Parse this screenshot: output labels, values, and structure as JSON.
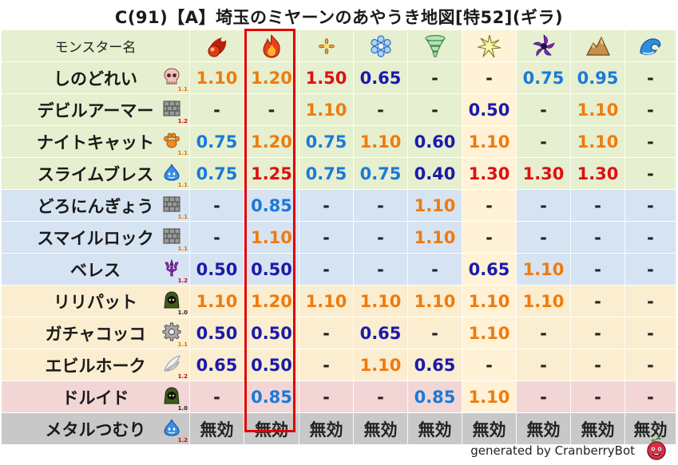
{
  "title": "C(91)【A】埼玉のミヤーンのあやうき地図[特52](ギラ)",
  "header": {
    "name_label": "モンスター名",
    "elements": [
      {
        "icon": "fire-ball-icon"
      },
      {
        "icon": "flame-icon"
      },
      {
        "icon": "wind-leaf-icon"
      },
      {
        "icon": "ice-crystal-icon"
      },
      {
        "icon": "tornado-icon"
      },
      {
        "icon": "lightning-icon"
      },
      {
        "icon": "dark-swirl-icon"
      },
      {
        "icon": "rock-mountain-icon"
      },
      {
        "icon": "water-wave-icon"
      }
    ]
  },
  "colors": {
    "header_bg": "#e6efcf",
    "lightning_bg": "#fff2d6",
    "metal_bg": "#c8c8c8",
    "color_map": {
      "orange": "#f07b0c",
      "red": "#dd1111",
      "navy": "#1a1aaa",
      "blue": "#1a7ad8",
      "dash": "#222222"
    },
    "highlight_border": "#e00000"
  },
  "rows": [
    {
      "name": "しのどれい",
      "icon": "skull-icon",
      "ratio": "1.1",
      "ratio_color": "#e07000",
      "bg": "#e6efcf",
      "cells": [
        {
          "v": "1.10",
          "c": "orange"
        },
        {
          "v": "1.20",
          "c": "orange"
        },
        {
          "v": "1.50",
          "c": "red"
        },
        {
          "v": "0.65",
          "c": "navy"
        },
        {
          "v": "-",
          "c": "dash"
        },
        {
          "v": "-",
          "c": "dash"
        },
        {
          "v": "0.75",
          "c": "blue"
        },
        {
          "v": "0.95",
          "c": "blue"
        },
        {
          "v": "-",
          "c": "dash"
        }
      ]
    },
    {
      "name": "デビルアーマー",
      "icon": "brick-wall-icon",
      "ratio": "1.2",
      "ratio_color": "#d00000",
      "bg": "#e6efcf",
      "cells": [
        {
          "v": "-",
          "c": "dash"
        },
        {
          "v": "-",
          "c": "dash"
        },
        {
          "v": "1.10",
          "c": "orange"
        },
        {
          "v": "-",
          "c": "dash"
        },
        {
          "v": "-",
          "c": "dash"
        },
        {
          "v": "0.50",
          "c": "navy"
        },
        {
          "v": "-",
          "c": "dash"
        },
        {
          "v": "1.10",
          "c": "orange"
        },
        {
          "v": "-",
          "c": "dash"
        }
      ]
    },
    {
      "name": "ナイトキャット",
      "icon": "paw-icon",
      "ratio": "1.1",
      "ratio_color": "#e07000",
      "bg": "#e6efcf",
      "cells": [
        {
          "v": "0.75",
          "c": "blue"
        },
        {
          "v": "1.20",
          "c": "orange"
        },
        {
          "v": "0.75",
          "c": "blue"
        },
        {
          "v": "1.10",
          "c": "orange"
        },
        {
          "v": "0.60",
          "c": "navy"
        },
        {
          "v": "1.10",
          "c": "orange"
        },
        {
          "v": "-",
          "c": "dash"
        },
        {
          "v": "1.10",
          "c": "orange"
        },
        {
          "v": "-",
          "c": "dash"
        }
      ]
    },
    {
      "name": "スライムブレス",
      "icon": "slime-icon",
      "ratio": "1.1",
      "ratio_color": "#e07000",
      "bg": "#e6efcf",
      "cells": [
        {
          "v": "0.75",
          "c": "blue"
        },
        {
          "v": "1.25",
          "c": "red"
        },
        {
          "v": "0.75",
          "c": "blue"
        },
        {
          "v": "0.75",
          "c": "blue"
        },
        {
          "v": "0.40",
          "c": "navy"
        },
        {
          "v": "1.30",
          "c": "red"
        },
        {
          "v": "1.30",
          "c": "red"
        },
        {
          "v": "1.30",
          "c": "red"
        },
        {
          "v": "-",
          "c": "dash"
        }
      ]
    },
    {
      "name": "どろにんぎょう",
      "icon": "brick-wall-icon",
      "ratio": "1.1",
      "ratio_color": "#e07000",
      "bg": "#d6e3f2",
      "cells": [
        {
          "v": "-",
          "c": "dash"
        },
        {
          "v": "0.85",
          "c": "blue"
        },
        {
          "v": "-",
          "c": "dash"
        },
        {
          "v": "-",
          "c": "dash"
        },
        {
          "v": "1.10",
          "c": "orange"
        },
        {
          "v": "-",
          "c": "dash"
        },
        {
          "v": "-",
          "c": "dash"
        },
        {
          "v": "-",
          "c": "dash"
        },
        {
          "v": "-",
          "c": "dash"
        }
      ]
    },
    {
      "name": "スマイルロック",
      "icon": "brick-wall-icon",
      "ratio": "1.1",
      "ratio_color": "#e07000",
      "bg": "#d6e3f2",
      "cells": [
        {
          "v": "-",
          "c": "dash"
        },
        {
          "v": "1.10",
          "c": "orange"
        },
        {
          "v": "-",
          "c": "dash"
        },
        {
          "v": "-",
          "c": "dash"
        },
        {
          "v": "1.10",
          "c": "orange"
        },
        {
          "v": "-",
          "c": "dash"
        },
        {
          "v": "-",
          "c": "dash"
        },
        {
          "v": "-",
          "c": "dash"
        },
        {
          "v": "-",
          "c": "dash"
        }
      ]
    },
    {
      "name": "ベレス",
      "icon": "trident-icon",
      "ratio": "1.2",
      "ratio_color": "#d00000",
      "bg": "#d6e3f2",
      "cells": [
        {
          "v": "0.50",
          "c": "navy"
        },
        {
          "v": "0.50",
          "c": "navy"
        },
        {
          "v": "-",
          "c": "dash"
        },
        {
          "v": "-",
          "c": "dash"
        },
        {
          "v": "-",
          "c": "dash"
        },
        {
          "v": "0.65",
          "c": "navy"
        },
        {
          "v": "1.10",
          "c": "orange"
        },
        {
          "v": "-",
          "c": "dash"
        },
        {
          "v": "-",
          "c": "dash"
        }
      ]
    },
    {
      "name": "リリパット",
      "icon": "ghost-hood-icon",
      "ratio": "1.0",
      "ratio_color": "#222222",
      "bg": "#fbedcf",
      "cells": [
        {
          "v": "1.10",
          "c": "orange"
        },
        {
          "v": "1.20",
          "c": "orange"
        },
        {
          "v": "1.10",
          "c": "orange"
        },
        {
          "v": "1.10",
          "c": "orange"
        },
        {
          "v": "1.10",
          "c": "orange"
        },
        {
          "v": "1.10",
          "c": "orange"
        },
        {
          "v": "1.10",
          "c": "orange"
        },
        {
          "v": "-",
          "c": "dash"
        },
        {
          "v": "-",
          "c": "dash"
        }
      ]
    },
    {
      "name": "ガチャコッコ",
      "icon": "gear-icon",
      "ratio": "1.1",
      "ratio_color": "#e07000",
      "bg": "#fbedcf",
      "cells": [
        {
          "v": "0.50",
          "c": "navy"
        },
        {
          "v": "0.50",
          "c": "navy"
        },
        {
          "v": "-",
          "c": "dash"
        },
        {
          "v": "0.65",
          "c": "navy"
        },
        {
          "v": "-",
          "c": "dash"
        },
        {
          "v": "1.10",
          "c": "orange"
        },
        {
          "v": "-",
          "c": "dash"
        },
        {
          "v": "-",
          "c": "dash"
        },
        {
          "v": "-",
          "c": "dash"
        }
      ]
    },
    {
      "name": "エビルホーク",
      "icon": "wing-icon",
      "ratio": "1.2",
      "ratio_color": "#d00000",
      "bg": "#fbedcf",
      "cells": [
        {
          "v": "0.65",
          "c": "navy"
        },
        {
          "v": "0.50",
          "c": "navy"
        },
        {
          "v": "-",
          "c": "dash"
        },
        {
          "v": "1.10",
          "c": "orange"
        },
        {
          "v": "0.65",
          "c": "navy"
        },
        {
          "v": "-",
          "c": "dash"
        },
        {
          "v": "-",
          "c": "dash"
        },
        {
          "v": "-",
          "c": "dash"
        },
        {
          "v": "-",
          "c": "dash"
        }
      ]
    },
    {
      "name": "ドルイド",
      "icon": "ghost-hood-icon",
      "ratio": "1.0",
      "ratio_color": "#222222",
      "bg": "#f2d6d6",
      "cells": [
        {
          "v": "-",
          "c": "dash"
        },
        {
          "v": "0.85",
          "c": "blue"
        },
        {
          "v": "-",
          "c": "dash"
        },
        {
          "v": "-",
          "c": "dash"
        },
        {
          "v": "0.85",
          "c": "blue"
        },
        {
          "v": "1.10",
          "c": "orange"
        },
        {
          "v": "-",
          "c": "dash"
        },
        {
          "v": "-",
          "c": "dash"
        },
        {
          "v": "-",
          "c": "dash"
        }
      ]
    },
    {
      "name": "メタルつむり",
      "icon": "slime-icon",
      "ratio": "1.2",
      "ratio_color": "#d00000",
      "bg": "#c8c8c8",
      "cells": [
        {
          "v": "無効",
          "c": "dash"
        },
        {
          "v": "無効",
          "c": "dash"
        },
        {
          "v": "無効",
          "c": "dash"
        },
        {
          "v": "無効",
          "c": "dash"
        },
        {
          "v": "無効",
          "c": "dash"
        },
        {
          "v": "無効",
          "c": "dash"
        },
        {
          "v": "無効",
          "c": "dash"
        },
        {
          "v": "無効",
          "c": "dash"
        },
        {
          "v": "無効",
          "c": "dash"
        }
      ]
    }
  ],
  "footer": {
    "text": "generated by CranberryBot",
    "logo": "cranberry-icon"
  }
}
